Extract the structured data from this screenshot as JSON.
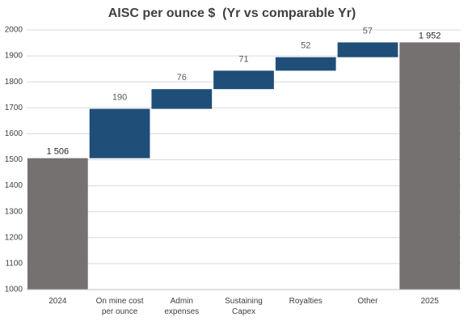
{
  "chart_data": {
    "type": "waterfall",
    "title": "AISC per ounce $  (Yr vs comparable Yr)",
    "categories": [
      "2024",
      "On mine cost per ounce",
      "Admin expenses",
      "Sustaining Capex",
      "Royalties",
      "Other",
      "2025"
    ],
    "values": [
      1506,
      190,
      76,
      71,
      52,
      57,
      1952
    ],
    "value_labels": [
      "1 506",
      "190",
      "76",
      "71",
      "52",
      "57",
      "1 952"
    ],
    "is_total": [
      true,
      false,
      false,
      false,
      false,
      false,
      true
    ],
    "total_color": "#767171",
    "increase_color": "#1f4e79",
    "ylim": [
      1000,
      2000
    ],
    "yticks": [
      1000,
      1100,
      1200,
      1300,
      1400,
      1500,
      1600,
      1700,
      1800,
      1900,
      2000
    ],
    "grid": true
  }
}
